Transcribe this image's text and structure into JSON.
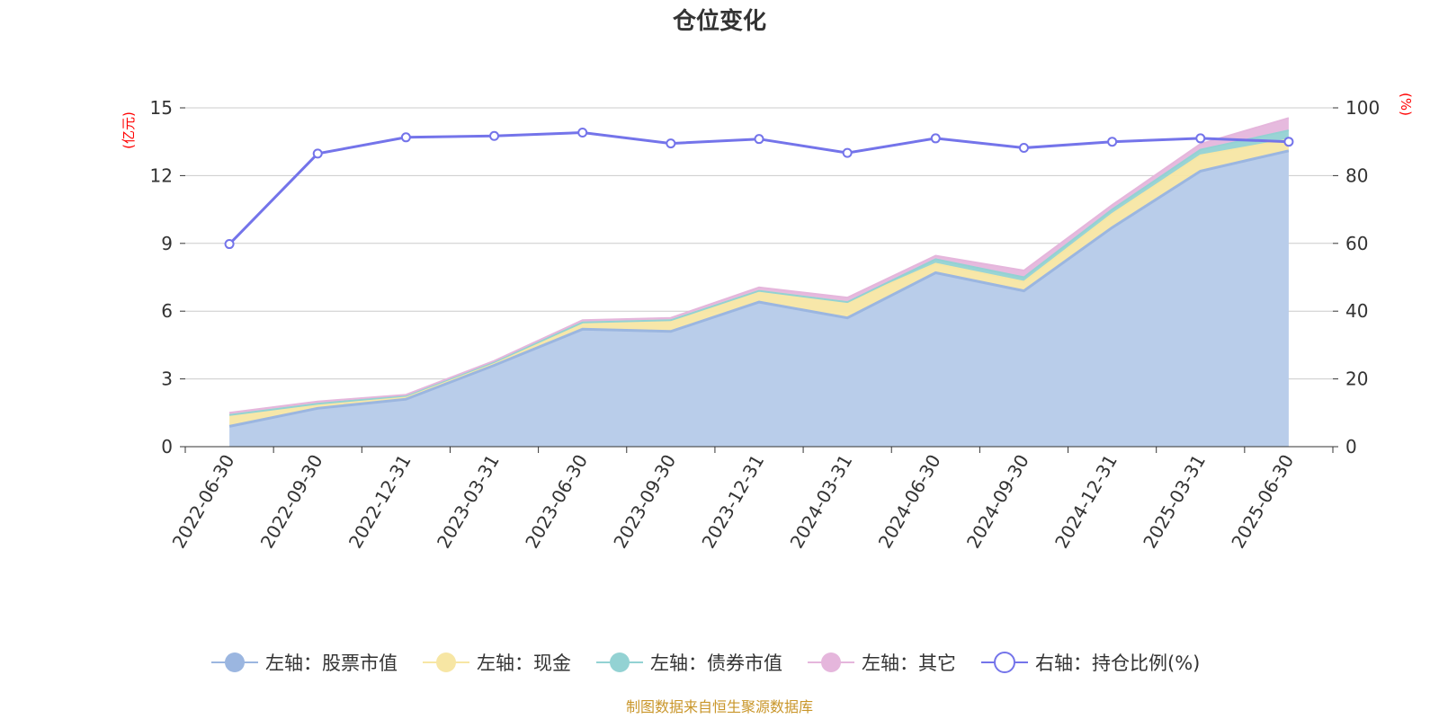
{
  "page": {
    "title": "仓位变化",
    "source": "制图数据来自恒生聚源数据库"
  },
  "colors": {
    "stock": "#9bb6e0",
    "stock_fill": "#b9cdea",
    "cash": "#f7e6a4",
    "bond": "#93d2d3",
    "other": "#e5b6dc",
    "ratio": "#7474ea",
    "grid": "#cccccc",
    "axis": "#333333"
  },
  "chart_data": {
    "type": "area",
    "title": "仓位变化",
    "categories": [
      "2022-06-30",
      "2022-09-30",
      "2022-12-31",
      "2023-03-31",
      "2023-06-30",
      "2023-09-30",
      "2023-12-31",
      "2024-03-31",
      "2024-06-30",
      "2024-09-30",
      "2024-12-31",
      "2025-03-31",
      "2025-06-30"
    ],
    "left_axis": {
      "name": "(亿元)",
      "min": 0,
      "max": 15,
      "ticks": [
        "0",
        "3",
        "6",
        "9",
        "12",
        "15"
      ]
    },
    "right_axis": {
      "name": "(%)",
      "min": 0,
      "max": 100,
      "ticks": [
        "0",
        "20",
        "40",
        "60",
        "80",
        "100"
      ]
    },
    "stacked_series": [
      {
        "key": "stock",
        "name": "左轴：股票市值",
        "values": [
          0.9,
          1.7,
          2.1,
          3.6,
          5.2,
          5.1,
          6.4,
          5.7,
          7.7,
          6.9,
          9.7,
          12.2,
          13.1
        ]
      },
      {
        "key": "cash",
        "name": "左轴：现金",
        "values": [
          0.5,
          0.2,
          0.15,
          0.15,
          0.3,
          0.5,
          0.5,
          0.7,
          0.4,
          0.4,
          0.6,
          0.7,
          0.5
        ]
      },
      {
        "key": "bond",
        "name": "左轴：债券市值",
        "values": [
          0.0,
          0.0,
          0.0,
          0.0,
          0.0,
          0.0,
          0.0,
          0.0,
          0.2,
          0.2,
          0.2,
          0.25,
          0.4
        ]
      },
      {
        "key": "other",
        "name": "左轴：其它",
        "values": [
          0.1,
          0.1,
          0.05,
          0.05,
          0.1,
          0.1,
          0.15,
          0.2,
          0.15,
          0.3,
          0.2,
          0.25,
          0.55
        ]
      }
    ],
    "line_series": {
      "key": "ratio",
      "name": "右轴：持仓比例(%)",
      "axis": "right",
      "values": [
        59.8,
        86.5,
        91.3,
        91.7,
        92.7,
        89.5,
        90.8,
        86.7,
        91.0,
        88.2,
        90.0,
        91.0,
        90.0
      ]
    },
    "grid": true,
    "legend_position": "bottom"
  }
}
